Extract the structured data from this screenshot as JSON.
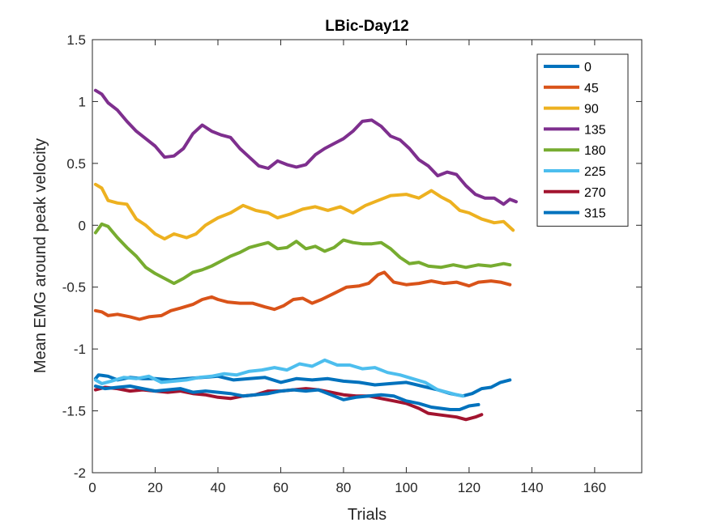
{
  "chart_data": {
    "type": "line",
    "title": "LBic-Day12",
    "xlabel": "Trials",
    "ylabel": "Mean EMG around peak velocity",
    "xlim": [
      0,
      175
    ],
    "ylim": [
      -2,
      1.5
    ],
    "xticks": [
      0,
      20,
      40,
      60,
      80,
      100,
      120,
      140,
      160
    ],
    "yticks": [
      -2,
      -1.5,
      -1,
      -0.5,
      0,
      0.5,
      1,
      1.5
    ],
    "xtick_labels": [
      "0",
      "20",
      "40",
      "60",
      "80",
      "100",
      "120",
      "140",
      "160"
    ],
    "ytick_labels": [
      "-2",
      "-1.5",
      "-1",
      "-0.5",
      "0",
      "0.5",
      "1",
      "1.5"
    ],
    "grid": false,
    "legend_position": "top-right",
    "series": [
      {
        "name": "0",
        "color": "#0072BD",
        "points": [
          [
            1,
            -1.24
          ],
          [
            2,
            -1.21
          ],
          [
            5,
            -1.22
          ],
          [
            8,
            -1.25
          ],
          [
            12,
            -1.23
          ],
          [
            16,
            -1.24
          ],
          [
            20,
            -1.24
          ],
          [
            25,
            -1.25
          ],
          [
            30,
            -1.24
          ],
          [
            35,
            -1.23
          ],
          [
            40,
            -1.22
          ],
          [
            45,
            -1.25
          ],
          [
            50,
            -1.24
          ],
          [
            55,
            -1.23
          ],
          [
            60,
            -1.27
          ],
          [
            65,
            -1.24
          ],
          [
            70,
            -1.25
          ],
          [
            75,
            -1.24
          ],
          [
            80,
            -1.26
          ],
          [
            85,
            -1.27
          ],
          [
            90,
            -1.29
          ],
          [
            95,
            -1.28
          ],
          [
            100,
            -1.27
          ],
          [
            105,
            -1.3
          ],
          [
            110,
            -1.33
          ],
          [
            114,
            -1.36
          ],
          [
            118,
            -1.38
          ],
          [
            121,
            -1.36
          ],
          [
            124,
            -1.32
          ],
          [
            127,
            -1.31
          ],
          [
            130,
            -1.27
          ],
          [
            133,
            -1.25
          ]
        ]
      },
      {
        "name": "45",
        "color": "#D95319",
        "points": [
          [
            1,
            -0.69
          ],
          [
            3,
            -0.7
          ],
          [
            5,
            -0.73
          ],
          [
            8,
            -0.72
          ],
          [
            12,
            -0.74
          ],
          [
            15,
            -0.76
          ],
          [
            18,
            -0.74
          ],
          [
            22,
            -0.73
          ],
          [
            25,
            -0.69
          ],
          [
            28,
            -0.67
          ],
          [
            32,
            -0.64
          ],
          [
            35,
            -0.6
          ],
          [
            38,
            -0.58
          ],
          [
            40,
            -0.6
          ],
          [
            43,
            -0.62
          ],
          [
            47,
            -0.63
          ],
          [
            51,
            -0.63
          ],
          [
            55,
            -0.66
          ],
          [
            58,
            -0.68
          ],
          [
            61,
            -0.65
          ],
          [
            64,
            -0.6
          ],
          [
            67,
            -0.59
          ],
          [
            70,
            -0.63
          ],
          [
            73,
            -0.6
          ],
          [
            77,
            -0.55
          ],
          [
            81,
            -0.5
          ],
          [
            85,
            -0.49
          ],
          [
            88,
            -0.47
          ],
          [
            91,
            -0.4
          ],
          [
            93,
            -0.38
          ],
          [
            96,
            -0.46
          ],
          [
            100,
            -0.48
          ],
          [
            104,
            -0.47
          ],
          [
            108,
            -0.45
          ],
          [
            112,
            -0.47
          ],
          [
            116,
            -0.46
          ],
          [
            120,
            -0.49
          ],
          [
            123,
            -0.46
          ],
          [
            127,
            -0.45
          ],
          [
            130,
            -0.46
          ],
          [
            133,
            -0.48
          ]
        ]
      },
      {
        "name": "90",
        "color": "#EDB120",
        "points": [
          [
            1,
            0.33
          ],
          [
            3,
            0.3
          ],
          [
            5,
            0.2
          ],
          [
            8,
            0.18
          ],
          [
            11,
            0.17
          ],
          [
            14,
            0.05
          ],
          [
            17,
            0.0
          ],
          [
            20,
            -0.07
          ],
          [
            23,
            -0.11
          ],
          [
            26,
            -0.07
          ],
          [
            30,
            -0.1
          ],
          [
            33,
            -0.07
          ],
          [
            36,
            0.0
          ],
          [
            40,
            0.06
          ],
          [
            44,
            0.1
          ],
          [
            48,
            0.16
          ],
          [
            52,
            0.12
          ],
          [
            56,
            0.1
          ],
          [
            59,
            0.06
          ],
          [
            63,
            0.09
          ],
          [
            67,
            0.13
          ],
          [
            71,
            0.15
          ],
          [
            75,
            0.12
          ],
          [
            79,
            0.15
          ],
          [
            83,
            0.1
          ],
          [
            87,
            0.16
          ],
          [
            91,
            0.2
          ],
          [
            95,
            0.24
          ],
          [
            100,
            0.25
          ],
          [
            104,
            0.22
          ],
          [
            108,
            0.28
          ],
          [
            111,
            0.23
          ],
          [
            114,
            0.19
          ],
          [
            117,
            0.12
          ],
          [
            120,
            0.1
          ],
          [
            124,
            0.05
          ],
          [
            128,
            0.02
          ],
          [
            131,
            0.03
          ],
          [
            134,
            -0.04
          ]
        ]
      },
      {
        "name": "135",
        "color": "#7E2F8E",
        "points": [
          [
            1,
            1.09
          ],
          [
            3,
            1.06
          ],
          [
            5,
            0.99
          ],
          [
            8,
            0.93
          ],
          [
            11,
            0.84
          ],
          [
            14,
            0.76
          ],
          [
            17,
            0.7
          ],
          [
            20,
            0.64
          ],
          [
            23,
            0.55
          ],
          [
            26,
            0.56
          ],
          [
            29,
            0.62
          ],
          [
            32,
            0.74
          ],
          [
            35,
            0.81
          ],
          [
            38,
            0.76
          ],
          [
            41,
            0.73
          ],
          [
            44,
            0.71
          ],
          [
            47,
            0.62
          ],
          [
            50,
            0.55
          ],
          [
            53,
            0.48
          ],
          [
            56,
            0.46
          ],
          [
            59,
            0.52
          ],
          [
            62,
            0.49
          ],
          [
            65,
            0.47
          ],
          [
            68,
            0.49
          ],
          [
            71,
            0.57
          ],
          [
            74,
            0.62
          ],
          [
            77,
            0.66
          ],
          [
            80,
            0.7
          ],
          [
            83,
            0.76
          ],
          [
            86,
            0.84
          ],
          [
            89,
            0.85
          ],
          [
            92,
            0.8
          ],
          [
            95,
            0.72
          ],
          [
            98,
            0.69
          ],
          [
            101,
            0.62
          ],
          [
            104,
            0.53
          ],
          [
            107,
            0.48
          ],
          [
            110,
            0.4
          ],
          [
            113,
            0.43
          ],
          [
            116,
            0.41
          ],
          [
            119,
            0.32
          ],
          [
            122,
            0.25
          ],
          [
            125,
            0.22
          ],
          [
            128,
            0.22
          ],
          [
            131,
            0.17
          ],
          [
            133,
            0.21
          ],
          [
            135,
            0.19
          ]
        ]
      },
      {
        "name": "180",
        "color": "#77AC30",
        "points": [
          [
            1,
            -0.06
          ],
          [
            3,
            0.01
          ],
          [
            5,
            -0.01
          ],
          [
            8,
            -0.1
          ],
          [
            11,
            -0.18
          ],
          [
            14,
            -0.25
          ],
          [
            17,
            -0.34
          ],
          [
            20,
            -0.39
          ],
          [
            23,
            -0.43
          ],
          [
            26,
            -0.47
          ],
          [
            29,
            -0.43
          ],
          [
            32,
            -0.38
          ],
          [
            35,
            -0.36
          ],
          [
            38,
            -0.33
          ],
          [
            41,
            -0.29
          ],
          [
            44,
            -0.25
          ],
          [
            47,
            -0.22
          ],
          [
            50,
            -0.18
          ],
          [
            53,
            -0.16
          ],
          [
            56,
            -0.14
          ],
          [
            59,
            -0.19
          ],
          [
            62,
            -0.18
          ],
          [
            65,
            -0.13
          ],
          [
            68,
            -0.19
          ],
          [
            71,
            -0.17
          ],
          [
            74,
            -0.21
          ],
          [
            77,
            -0.18
          ],
          [
            80,
            -0.12
          ],
          [
            83,
            -0.14
          ],
          [
            86,
            -0.15
          ],
          [
            89,
            -0.15
          ],
          [
            92,
            -0.14
          ],
          [
            95,
            -0.19
          ],
          [
            98,
            -0.26
          ],
          [
            101,
            -0.31
          ],
          [
            104,
            -0.3
          ],
          [
            107,
            -0.33
          ],
          [
            111,
            -0.34
          ],
          [
            115,
            -0.32
          ],
          [
            119,
            -0.34
          ],
          [
            123,
            -0.32
          ],
          [
            127,
            -0.33
          ],
          [
            131,
            -0.31
          ],
          [
            133,
            -0.32
          ]
        ]
      },
      {
        "name": "225",
        "color": "#4DBEEE",
        "points": [
          [
            1,
            -1.25
          ],
          [
            3,
            -1.28
          ],
          [
            6,
            -1.26
          ],
          [
            10,
            -1.23
          ],
          [
            14,
            -1.24
          ],
          [
            18,
            -1.22
          ],
          [
            22,
            -1.27
          ],
          [
            26,
            -1.26
          ],
          [
            30,
            -1.25
          ],
          [
            34,
            -1.23
          ],
          [
            38,
            -1.22
          ],
          [
            42,
            -1.2
          ],
          [
            46,
            -1.21
          ],
          [
            50,
            -1.18
          ],
          [
            54,
            -1.17
          ],
          [
            58,
            -1.15
          ],
          [
            62,
            -1.17
          ],
          [
            66,
            -1.12
          ],
          [
            70,
            -1.14
          ],
          [
            74,
            -1.09
          ],
          [
            78,
            -1.13
          ],
          [
            82,
            -1.13
          ],
          [
            86,
            -1.16
          ],
          [
            90,
            -1.15
          ],
          [
            94,
            -1.19
          ],
          [
            98,
            -1.21
          ],
          [
            102,
            -1.24
          ],
          [
            106,
            -1.27
          ],
          [
            110,
            -1.33
          ],
          [
            113,
            -1.35
          ],
          [
            116,
            -1.37
          ],
          [
            118,
            -1.38
          ]
        ]
      },
      {
        "name": "270",
        "color": "#A2142F",
        "points": [
          [
            1,
            -1.33
          ],
          [
            4,
            -1.31
          ],
          [
            8,
            -1.32
          ],
          [
            12,
            -1.34
          ],
          [
            16,
            -1.33
          ],
          [
            20,
            -1.34
          ],
          [
            24,
            -1.35
          ],
          [
            28,
            -1.34
          ],
          [
            32,
            -1.36
          ],
          [
            36,
            -1.37
          ],
          [
            40,
            -1.39
          ],
          [
            44,
            -1.4
          ],
          [
            48,
            -1.38
          ],
          [
            52,
            -1.37
          ],
          [
            56,
            -1.34
          ],
          [
            60,
            -1.34
          ],
          [
            64,
            -1.33
          ],
          [
            68,
            -1.32
          ],
          [
            72,
            -1.33
          ],
          [
            76,
            -1.35
          ],
          [
            80,
            -1.37
          ],
          [
            84,
            -1.38
          ],
          [
            88,
            -1.38
          ],
          [
            92,
            -1.4
          ],
          [
            96,
            -1.42
          ],
          [
            100,
            -1.44
          ],
          [
            104,
            -1.48
          ],
          [
            107,
            -1.52
          ],
          [
            110,
            -1.53
          ],
          [
            113,
            -1.54
          ],
          [
            116,
            -1.55
          ],
          [
            119,
            -1.57
          ],
          [
            122,
            -1.55
          ],
          [
            124,
            -1.53
          ]
        ]
      },
      {
        "name": "315",
        "color": "#0072BD",
        "points": [
          [
            1,
            -1.3
          ],
          [
            4,
            -1.32
          ],
          [
            8,
            -1.31
          ],
          [
            12,
            -1.3
          ],
          [
            16,
            -1.32
          ],
          [
            20,
            -1.34
          ],
          [
            24,
            -1.33
          ],
          [
            28,
            -1.32
          ],
          [
            32,
            -1.35
          ],
          [
            36,
            -1.34
          ],
          [
            40,
            -1.35
          ],
          [
            44,
            -1.36
          ],
          [
            48,
            -1.38
          ],
          [
            52,
            -1.37
          ],
          [
            56,
            -1.36
          ],
          [
            60,
            -1.34
          ],
          [
            64,
            -1.33
          ],
          [
            68,
            -1.34
          ],
          [
            72,
            -1.33
          ],
          [
            76,
            -1.37
          ],
          [
            80,
            -1.41
          ],
          [
            84,
            -1.39
          ],
          [
            88,
            -1.38
          ],
          [
            92,
            -1.37
          ],
          [
            96,
            -1.38
          ],
          [
            100,
            -1.42
          ],
          [
            104,
            -1.44
          ],
          [
            108,
            -1.47
          ],
          [
            111,
            -1.48
          ],
          [
            114,
            -1.49
          ],
          [
            117,
            -1.49
          ],
          [
            120,
            -1.46
          ],
          [
            123,
            -1.45
          ]
        ]
      }
    ]
  }
}
